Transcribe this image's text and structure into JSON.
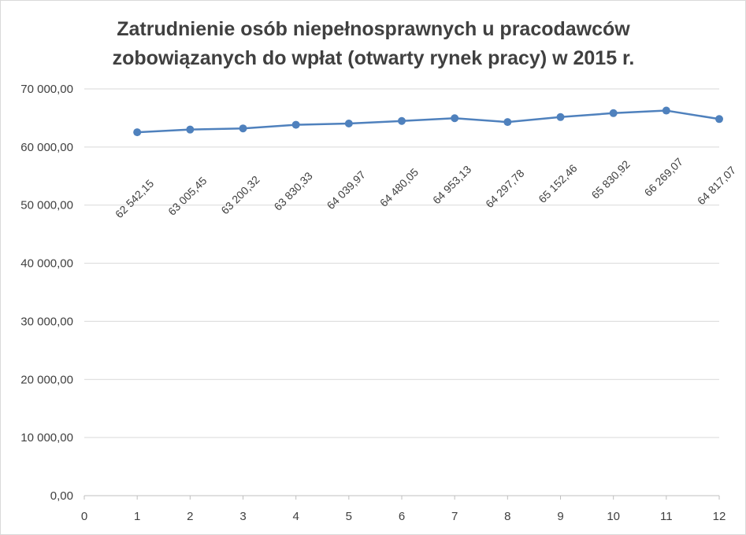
{
  "chart_data": {
    "type": "line",
    "title_lines": [
      "Zatrudnienie osób niepełnosprawnych u pracodawców",
      "zobowiązanych do wpłat (otwarty rynek pracy) w 2015 r."
    ],
    "xlabel": "",
    "ylabel": "",
    "xlim": [
      0,
      12
    ],
    "ylim": [
      0,
      70000
    ],
    "x_ticks": [
      "0",
      "1",
      "2",
      "3",
      "4",
      "5",
      "6",
      "7",
      "8",
      "9",
      "10",
      "11",
      "12"
    ],
    "y_ticks": [
      {
        "value": 0,
        "label": "0,00"
      },
      {
        "value": 10000,
        "label": "10 000,00"
      },
      {
        "value": 20000,
        "label": "20 000,00"
      },
      {
        "value": 30000,
        "label": "30 000,00"
      },
      {
        "value": 40000,
        "label": "40 000,00"
      },
      {
        "value": 50000,
        "label": "50 000,00"
      },
      {
        "value": 60000,
        "label": "60 000,00"
      },
      {
        "value": 70000,
        "label": "70 000,00"
      }
    ],
    "grid": true,
    "legend": "none",
    "series": [
      {
        "color": "#4f81bd",
        "points": [
          {
            "x": 1,
            "y": 62542.15,
            "label": "62 542,15"
          },
          {
            "x": 2,
            "y": 63005.45,
            "label": "63 005,45"
          },
          {
            "x": 3,
            "y": 63200.32,
            "label": "63 200,32"
          },
          {
            "x": 4,
            "y": 63830.33,
            "label": "63 830,33"
          },
          {
            "x": 5,
            "y": 64039.97,
            "label": "64 039,97"
          },
          {
            "x": 6,
            "y": 64480.05,
            "label": "64 480,05"
          },
          {
            "x": 7,
            "y": 64953.13,
            "label": "64 953,13"
          },
          {
            "x": 8,
            "y": 64297.78,
            "label": "64 297,78"
          },
          {
            "x": 9,
            "y": 65152.46,
            "label": "65 152,46"
          },
          {
            "x": 10,
            "y": 65830.92,
            "label": "65 830,92"
          },
          {
            "x": 11,
            "y": 66269.07,
            "label": "66 269,07"
          },
          {
            "x": 12,
            "y": 64817.07,
            "label": "64 817,07"
          }
        ]
      }
    ]
  }
}
